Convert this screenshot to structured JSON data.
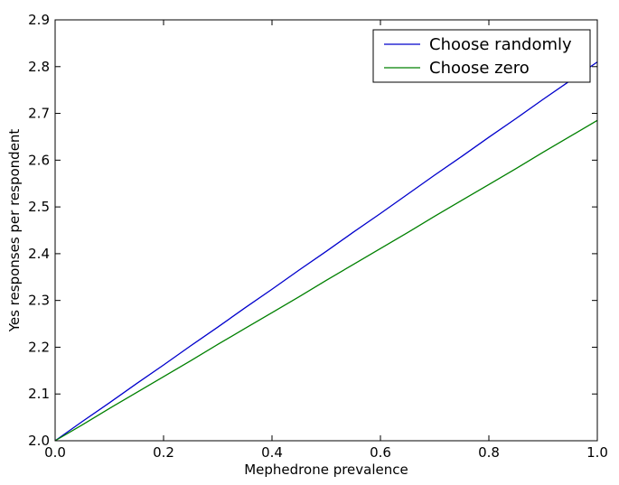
{
  "chart_data": {
    "type": "line",
    "xlabel": "Mephedrone prevalence",
    "ylabel": "Yes responses per respondent",
    "xlim": [
      0.0,
      1.0
    ],
    "ylim": [
      2.0,
      2.9
    ],
    "xticks": [
      "0.0",
      "0.2",
      "0.4",
      "0.6",
      "0.8",
      "1.0"
    ],
    "yticks": [
      "2.0",
      "2.1",
      "2.2",
      "2.3",
      "2.4",
      "2.5",
      "2.6",
      "2.7",
      "2.8",
      "2.9"
    ],
    "grid": false,
    "legend_position": "top-right",
    "series": [
      {
        "name": "Choose randomly",
        "color": "#0000cc",
        "x": [
          0.0,
          0.05,
          0.1,
          0.15,
          0.2,
          0.25,
          0.3,
          0.35,
          0.4,
          0.45,
          0.5,
          0.55,
          0.6,
          0.65,
          0.7,
          0.75,
          0.8,
          0.85,
          0.9,
          0.95,
          1.0
        ],
        "y": [
          2.0,
          2.041,
          2.081,
          2.122,
          2.162,
          2.203,
          2.243,
          2.284,
          2.324,
          2.365,
          2.405,
          2.446,
          2.486,
          2.527,
          2.568,
          2.608,
          2.649,
          2.689,
          2.73,
          2.77,
          2.81
        ]
      },
      {
        "name": "Choose zero",
        "color": "#008000",
        "x": [
          0.0,
          0.05,
          0.1,
          0.15,
          0.2,
          0.25,
          0.3,
          0.35,
          0.4,
          0.45,
          0.5,
          0.55,
          0.6,
          0.65,
          0.7,
          0.75,
          0.8,
          0.85,
          0.9,
          0.95,
          1.0
        ],
        "y": [
          2.0,
          2.034,
          2.069,
          2.103,
          2.137,
          2.171,
          2.206,
          2.24,
          2.274,
          2.308,
          2.343,
          2.377,
          2.411,
          2.445,
          2.48,
          2.514,
          2.548,
          2.582,
          2.617,
          2.651,
          2.685
        ]
      }
    ]
  }
}
